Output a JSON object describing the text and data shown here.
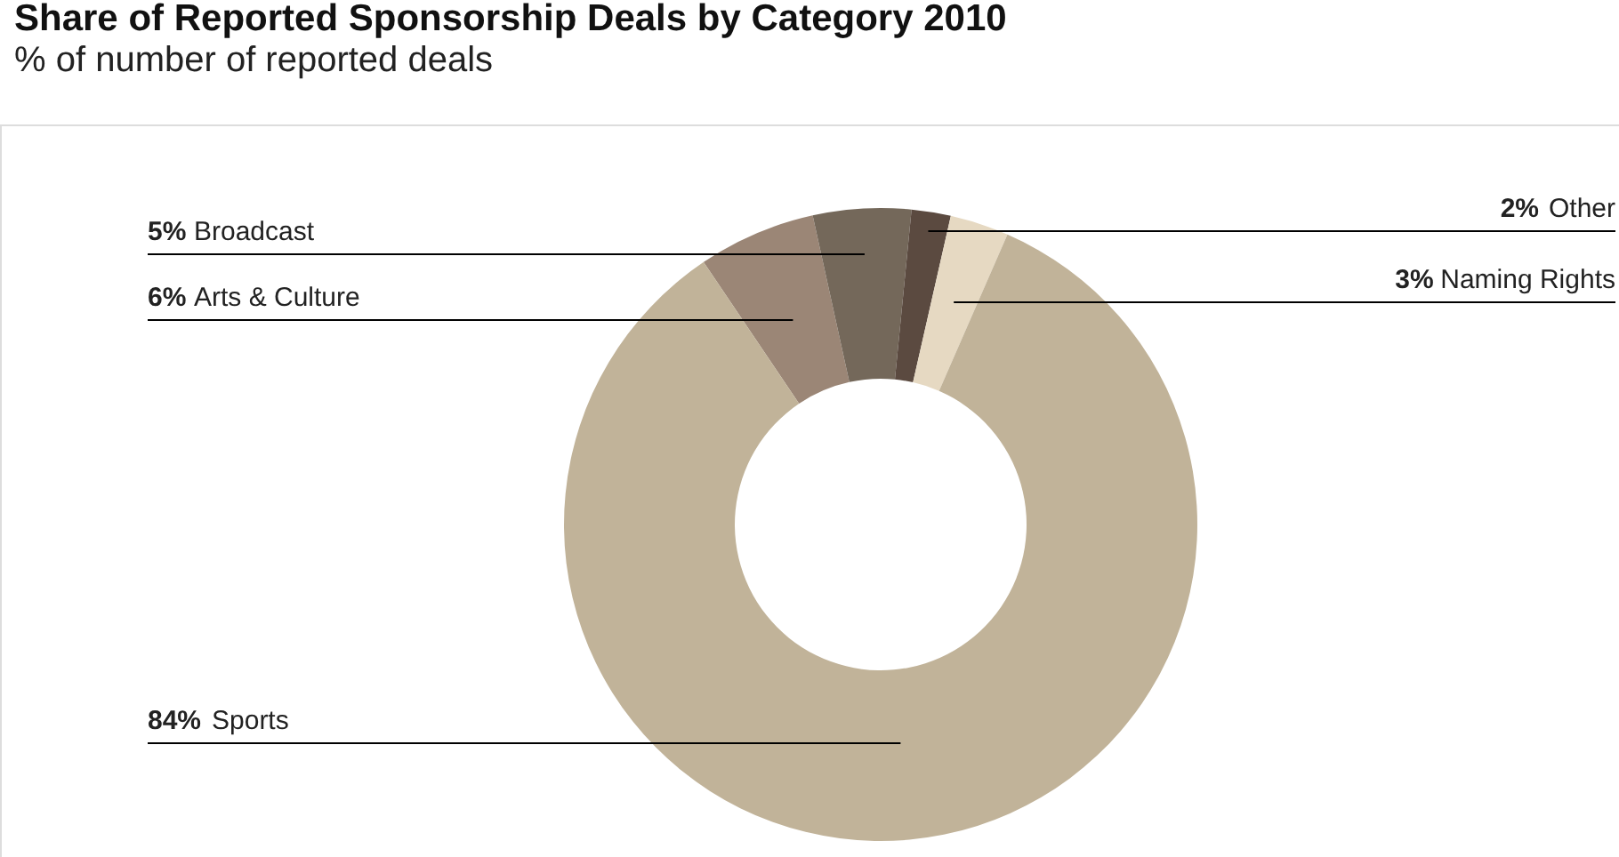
{
  "chart_data": {
    "type": "donut",
    "title": "Share of Reported Sponsorship Deals by Category 2010",
    "subtitle": "% of number of reported deals",
    "categories": [
      "Arts & Culture",
      "Broadcast",
      "Other",
      "Naming Rights",
      "Sports"
    ],
    "values": [
      6,
      5,
      2,
      3,
      84
    ],
    "colors": [
      "#9b8676",
      "#74685a",
      "#5b4a40",
      "#e6d9c2",
      "#c1b399"
    ],
    "value_labels": [
      "6%",
      "5%",
      "2%",
      "3%",
      "84%"
    ],
    "legend": false
  }
}
